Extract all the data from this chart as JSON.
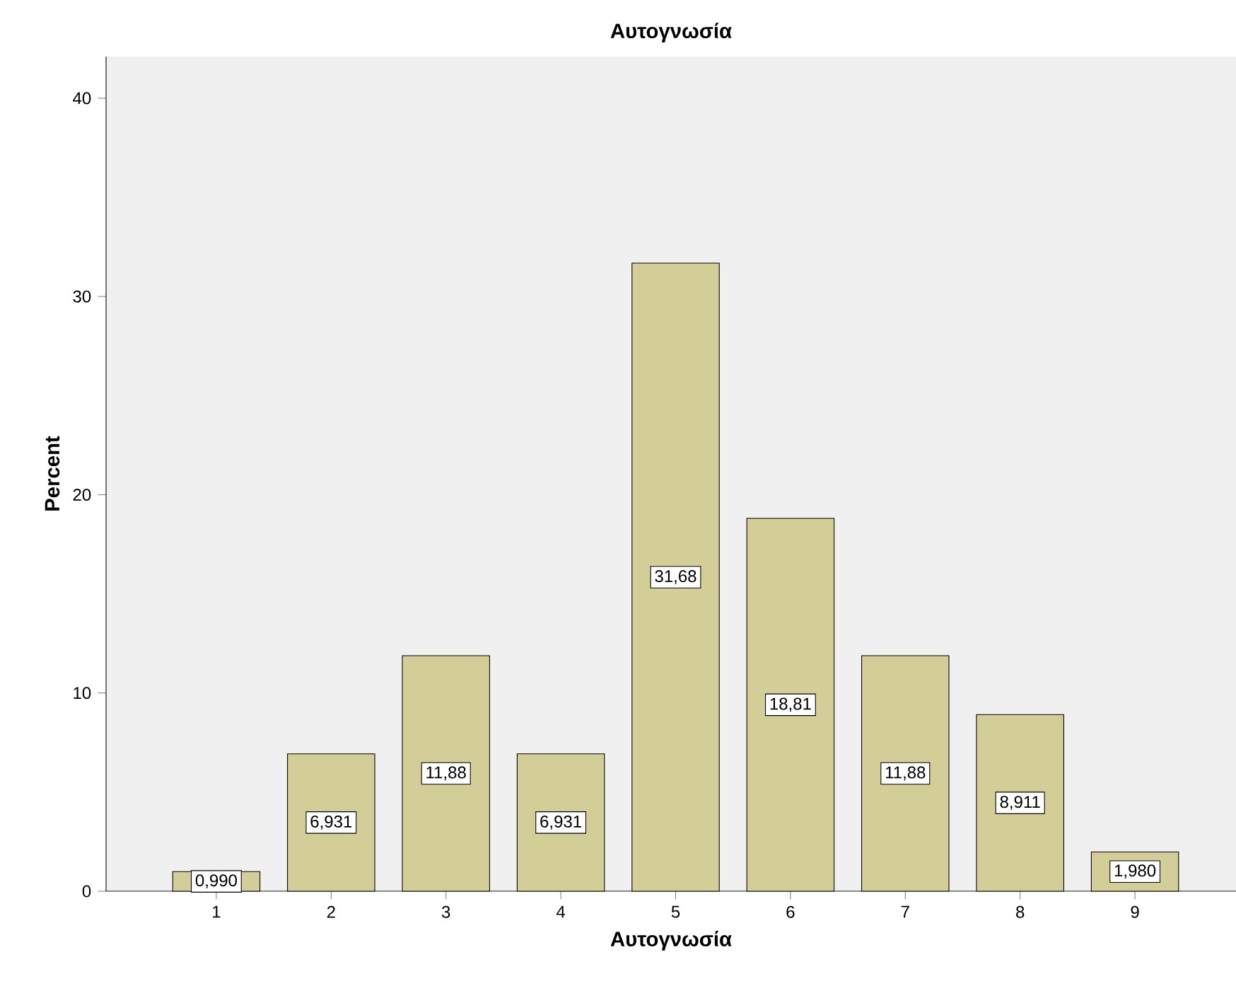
{
  "chart_data": {
    "type": "bar",
    "title": "Αυτογνωσία",
    "xlabel": "Αυτογνωσία",
    "ylabel": "Percent",
    "categories": [
      "1",
      "2",
      "3",
      "4",
      "5",
      "6",
      "7",
      "8",
      "9"
    ],
    "values": [
      0.99,
      6.931,
      11.88,
      6.931,
      31.68,
      18.81,
      11.88,
      8.911,
      1.98
    ],
    "value_labels": [
      "0,990",
      "6,931",
      "11,88",
      "6,931",
      "31,68",
      "18,81",
      "11,88",
      "8,911",
      "1,980"
    ],
    "color": "#d3ce97",
    "ylim": [
      0,
      42.1
    ],
    "yticks": [
      0,
      10,
      20,
      30,
      40
    ]
  }
}
